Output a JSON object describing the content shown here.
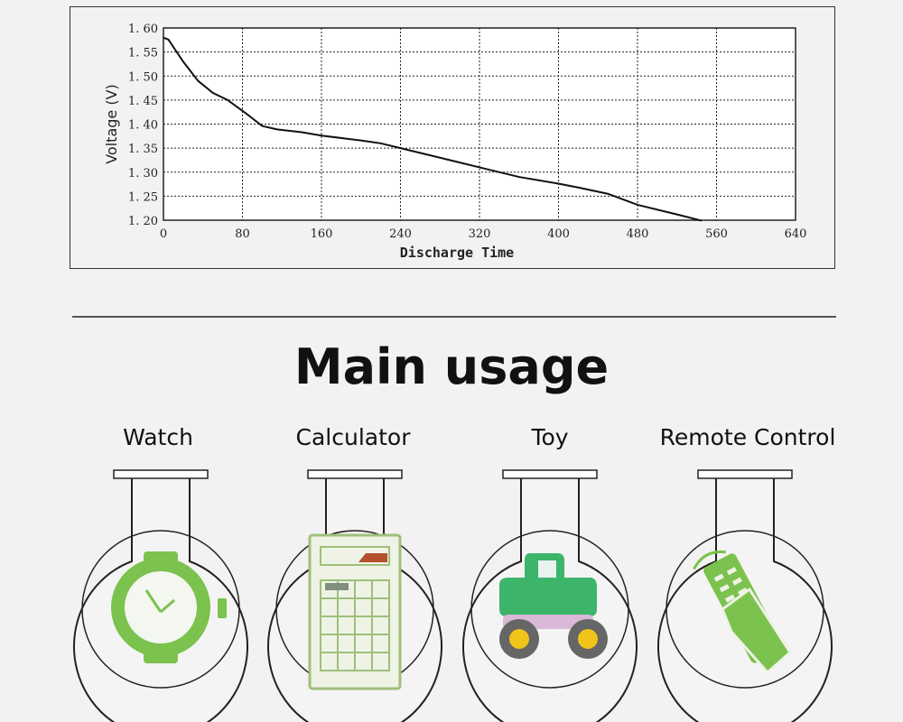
{
  "chart_data": {
    "type": "line",
    "xlabel": "Discharge Time",
    "ylabel": "Voltage (V)",
    "xlim": [
      0,
      640
    ],
    "ylim": [
      1.2,
      1.6
    ],
    "x_ticks": [
      "0",
      "80",
      "160",
      "240",
      "320",
      "400",
      "480",
      "560",
      "640"
    ],
    "y_ticks": [
      "1.20",
      "1.25",
      "1.30",
      "1.35",
      "1.40",
      "1.45",
      "1.50",
      "1.55",
      "1.60"
    ],
    "grid": true,
    "series": [
      {
        "color": "#111111",
        "points": [
          [
            0,
            1.58
          ],
          [
            5,
            1.576
          ],
          [
            20,
            1.53
          ],
          [
            35,
            1.49
          ],
          [
            50,
            1.465
          ],
          [
            65,
            1.45
          ],
          [
            85,
            1.42
          ],
          [
            100,
            1.396
          ],
          [
            115,
            1.389
          ],
          [
            140,
            1.383
          ],
          [
            160,
            1.376
          ],
          [
            200,
            1.366
          ],
          [
            220,
            1.36
          ],
          [
            240,
            1.35
          ],
          [
            280,
            1.33
          ],
          [
            320,
            1.31
          ],
          [
            360,
            1.29
          ],
          [
            400,
            1.276
          ],
          [
            420,
            1.268
          ],
          [
            450,
            1.255
          ],
          [
            480,
            1.232
          ],
          [
            520,
            1.212
          ],
          [
            545,
            1.199
          ]
        ]
      }
    ]
  },
  "section": {
    "title": "Main usage"
  },
  "usages": [
    {
      "label": "Watch",
      "icon": "watch-icon"
    },
    {
      "label": "Calculator",
      "icon": "calculator-icon"
    },
    {
      "label": "Toy",
      "icon": "toy-truck-icon"
    },
    {
      "label": "Remote Control",
      "icon": "remote-control-icon"
    }
  ],
  "colors": {
    "icon_green": "#7cc24e",
    "truck_green": "#3cb56a",
    "wheel_yellow": "#f0c419"
  }
}
